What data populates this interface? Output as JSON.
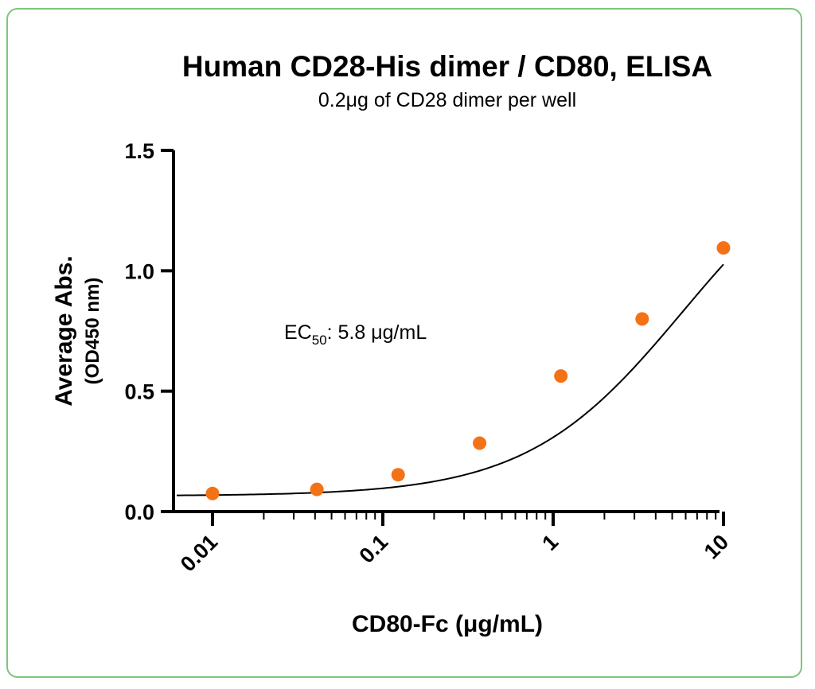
{
  "colors": {
    "frame": "#7dc67a",
    "marker": "#f47216",
    "curve": "#000000",
    "axis": "#000000"
  },
  "chart_data": {
    "type": "scatter",
    "title": "Human CD28-His dimer / CD80, ELISA",
    "subtitle": "0.2μg of CD28 dimer per well",
    "xlabel": "CD80-Fc (μg/mL)",
    "ylabel": "Average Abs.",
    "ylabel_sub": "(OD450 nm)",
    "x_scale": "log",
    "xlim": [
      0.006,
      12
    ],
    "ylim": [
      0,
      1.5
    ],
    "x_ticks": [
      0.01,
      0.1,
      1,
      10
    ],
    "x_tick_labels": [
      "0.01",
      "0.1",
      "1",
      "10"
    ],
    "y_ticks": [
      0,
      0.5,
      1,
      1.5
    ],
    "y_tick_labels": [
      "0.0",
      "0.5",
      "1.0",
      "1.5"
    ],
    "grid": false,
    "annotation": {
      "prefix": "EC",
      "subscript": "50",
      "text": ": 5.8 μg/mL"
    },
    "series": [
      {
        "points": [
          {
            "x": 0.01,
            "y": 0.075
          },
          {
            "x": 0.041,
            "y": 0.092
          },
          {
            "x": 0.123,
            "y": 0.153
          },
          {
            "x": 0.37,
            "y": 0.284
          },
          {
            "x": 1.11,
            "y": 0.563
          },
          {
            "x": 3.33,
            "y": 0.8
          },
          {
            "x": 10,
            "y": 1.095
          }
        ]
      }
    ],
    "fit": {
      "model": "4PL",
      "bottom": 0.065,
      "top": 1.6,
      "ec50": 5.8,
      "hill": 0.95
    }
  }
}
